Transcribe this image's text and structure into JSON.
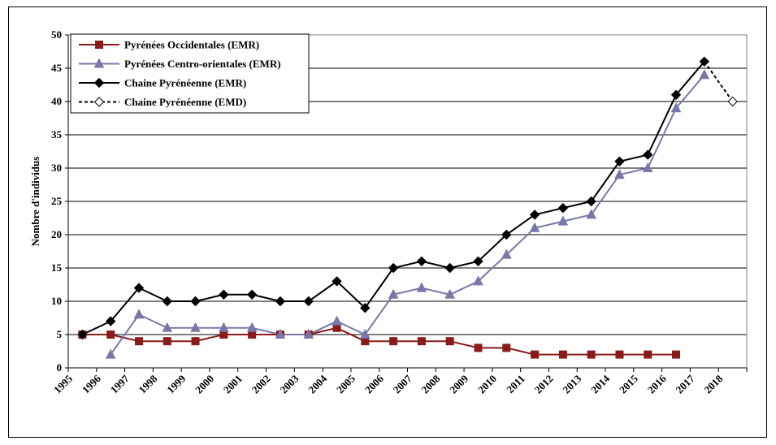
{
  "chart_data": {
    "type": "line",
    "title": "",
    "xlabel": "",
    "ylabel": "Nombre d'individus",
    "ylim": [
      0,
      50
    ],
    "yticks": [
      0,
      5,
      10,
      15,
      20,
      25,
      30,
      35,
      40,
      45,
      50
    ],
    "categories": [
      "1995",
      "1996",
      "1997",
      "1998",
      "1999",
      "2000",
      "2001",
      "2002",
      "2003",
      "2004",
      "2005",
      "2006",
      "2007",
      "2008",
      "2009",
      "2010",
      "2011",
      "2012",
      "2013",
      "2014",
      "2015",
      "2016",
      "2017",
      "2018"
    ],
    "grid": true,
    "legend": "top-left",
    "series": [
      {
        "name": "Pyrénées Occidentales (EMR)",
        "color": "#8b1a1a",
        "marker": "square",
        "dash": false,
        "values": [
          5,
          5,
          4,
          4,
          4,
          5,
          5,
          5,
          5,
          6,
          4,
          4,
          4,
          4,
          3,
          3,
          2,
          2,
          2,
          2,
          2,
          2,
          null,
          null
        ]
      },
      {
        "name": "Pyrénées Centro-orientales (EMR)",
        "color": "#7878a8",
        "marker": "triangle",
        "dash": false,
        "values": [
          null,
          2,
          8,
          6,
          6,
          6,
          6,
          5,
          5,
          7,
          5,
          11,
          12,
          11,
          13,
          17,
          21,
          22,
          23,
          29,
          30,
          39,
          44,
          null
        ]
      },
      {
        "name": "Chaine Pyrénéenne (EMR)",
        "color": "#000000",
        "marker": "diamond",
        "dash": false,
        "values": [
          5,
          7,
          12,
          10,
          10,
          11,
          11,
          10,
          10,
          13,
          9,
          15,
          16,
          15,
          16,
          20,
          23,
          24,
          25,
          31,
          32,
          41,
          46,
          null
        ]
      },
      {
        "name": "Chaine Pyrénéenne (EMD)",
        "color": "#000000",
        "marker": "diamond-open",
        "dash": true,
        "values": [
          null,
          null,
          null,
          null,
          null,
          null,
          null,
          null,
          null,
          null,
          null,
          null,
          null,
          null,
          null,
          null,
          null,
          null,
          null,
          null,
          null,
          null,
          46,
          40
        ]
      }
    ]
  }
}
